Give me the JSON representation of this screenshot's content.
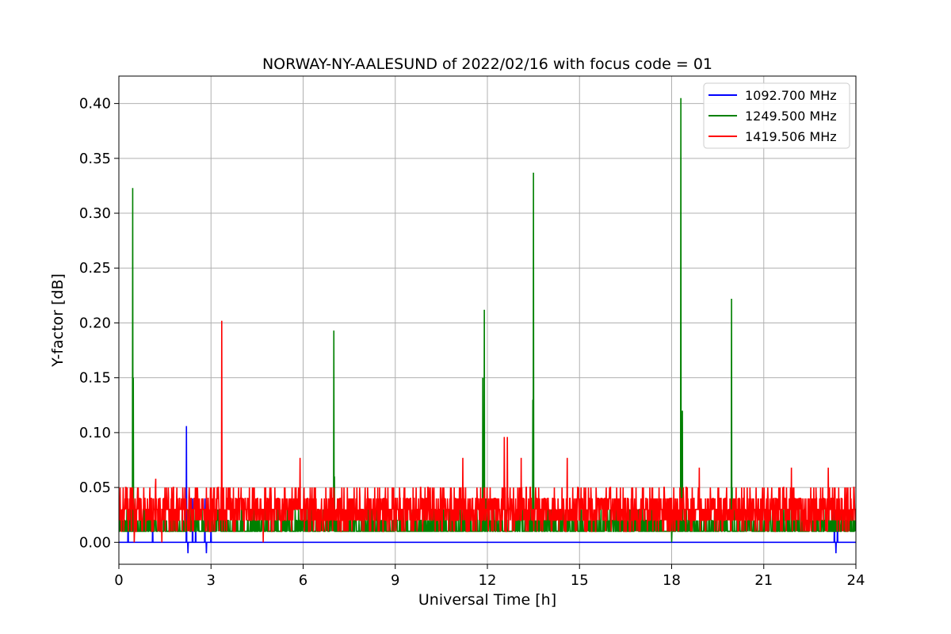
{
  "chart_data": {
    "type": "line",
    "title": "NORWAY-NY-AALESUND of 2022/02/16 with focus code = 01",
    "xlabel": "Universal Time [h]",
    "ylabel": "Y-factor [dB]",
    "xlim": [
      0,
      24
    ],
    "ylim": [
      -0.02,
      0.425
    ],
    "xticks": [
      0,
      3,
      6,
      9,
      12,
      15,
      18,
      21,
      24
    ],
    "yticks": [
      0.0,
      0.05,
      0.1,
      0.15,
      0.2,
      0.25,
      0.3,
      0.35,
      0.4
    ],
    "xtick_labels": [
      "0",
      "3",
      "6",
      "9",
      "12",
      "15",
      "18",
      "21",
      "24"
    ],
    "ytick_labels": [
      "0.00",
      "0.05",
      "0.10",
      "0.15",
      "0.20",
      "0.25",
      "0.30",
      "0.35",
      "0.40"
    ],
    "grid": true,
    "legend_position": "top-right",
    "series": [
      {
        "name": "1092.700 MHz",
        "color": "#0000ff",
        "baseline": 0.0,
        "spikes": [
          [
            0.3,
            0.03
          ],
          [
            0.35,
            0.0
          ],
          [
            1.1,
            0.02
          ],
          [
            2.2,
            0.106
          ],
          [
            2.25,
            -0.01
          ],
          [
            2.4,
            0.04
          ],
          [
            2.5,
            0.02
          ],
          [
            2.8,
            0.04
          ],
          [
            2.85,
            -0.01
          ],
          [
            3.0,
            0.02
          ],
          [
            23.3,
            0.03
          ],
          [
            23.35,
            -0.01
          ],
          [
            23.4,
            0.03
          ]
        ]
      },
      {
        "name": "1249.500 MHz",
        "color": "#008000",
        "baseline": 0.01,
        "spikes": [
          [
            0.45,
            0.323
          ],
          [
            0.47,
            0.15
          ],
          [
            7.0,
            0.193
          ],
          [
            7.02,
            0.06
          ],
          [
            11.85,
            0.15
          ],
          [
            11.9,
            0.212
          ],
          [
            11.95,
            0.04
          ],
          [
            13.5,
            0.337
          ],
          [
            13.48,
            0.13
          ],
          [
            18.0,
            0.0
          ],
          [
            18.3,
            0.405
          ],
          [
            18.35,
            0.12
          ],
          [
            19.95,
            0.222
          ],
          [
            19.97,
            0.05
          ]
        ],
        "band": [
          0.01,
          0.05
        ]
      },
      {
        "name": "1419.506 MHz",
        "color": "#ff0000",
        "baseline": 0.03,
        "spikes": [
          [
            0.5,
            0.0
          ],
          [
            1.2,
            0.058
          ],
          [
            1.4,
            0.0
          ],
          [
            3.35,
            0.202
          ],
          [
            4.7,
            0.0
          ],
          [
            5.9,
            0.077
          ],
          [
            11.2,
            0.077
          ],
          [
            12.55,
            0.096
          ],
          [
            12.65,
            0.096
          ],
          [
            13.1,
            0.077
          ],
          [
            14.6,
            0.077
          ],
          [
            18.9,
            0.068
          ],
          [
            21.9,
            0.068
          ],
          [
            23.1,
            0.068
          ]
        ],
        "band": [
          0.01,
          0.05
        ]
      }
    ]
  }
}
